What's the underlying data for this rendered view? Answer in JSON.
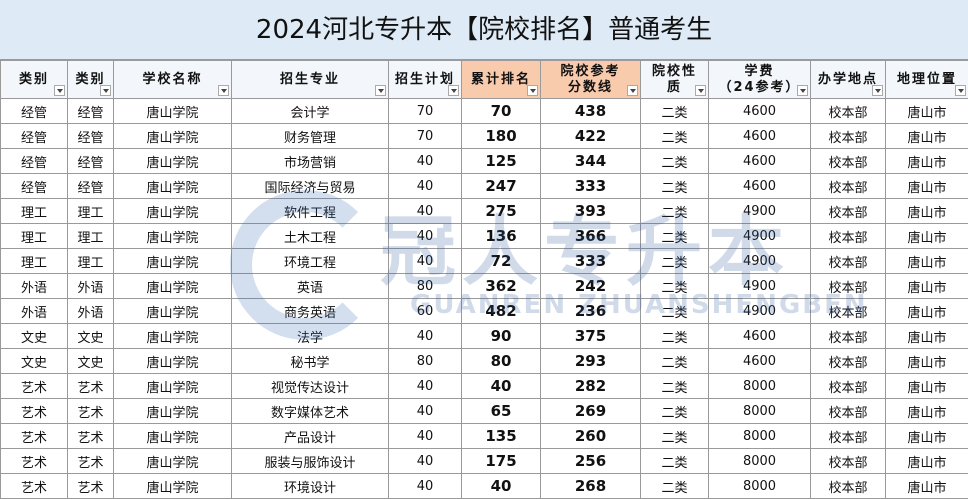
{
  "title": "2024河北专升本【院校排名】普通考生",
  "watermark": {
    "main": "冠人专升本",
    "sub": "GUANREN ZHUANSHENGBEN"
  },
  "table": {
    "header": [
      [
        "类别"
      ],
      [
        "类别"
      ],
      [
        "学校名称"
      ],
      [
        "招生专业"
      ],
      [
        "招生计划"
      ],
      [
        "累计排名"
      ],
      [
        "院校参考",
        "分数线"
      ],
      [
        "院校性",
        "质"
      ],
      [
        "学费",
        "（24参考）"
      ],
      [
        "办学地点"
      ],
      [
        "地理位置"
      ]
    ],
    "rows": [
      [
        "经管",
        "经管",
        "唐山学院",
        "会计学",
        70,
        70,
        438,
        "二类",
        4600,
        "校本部",
        "唐山市"
      ],
      [
        "经管",
        "经管",
        "唐山学院",
        "财务管理",
        70,
        180,
        422,
        "二类",
        4600,
        "校本部",
        "唐山市"
      ],
      [
        "经管",
        "经管",
        "唐山学院",
        "市场营销",
        40,
        125,
        344,
        "二类",
        4600,
        "校本部",
        "唐山市"
      ],
      [
        "经管",
        "经管",
        "唐山学院",
        "国际经济与贸易",
        40,
        247,
        333,
        "二类",
        4600,
        "校本部",
        "唐山市"
      ],
      [
        "理工",
        "理工",
        "唐山学院",
        "软件工程",
        40,
        275,
        393,
        "二类",
        4900,
        "校本部",
        "唐山市"
      ],
      [
        "理工",
        "理工",
        "唐山学院",
        "土木工程",
        40,
        136,
        366,
        "二类",
        4900,
        "校本部",
        "唐山市"
      ],
      [
        "理工",
        "理工",
        "唐山学院",
        "环境工程",
        40,
        72,
        333,
        "二类",
        4900,
        "校本部",
        "唐山市"
      ],
      [
        "外语",
        "外语",
        "唐山学院",
        "英语",
        80,
        362,
        242,
        "二类",
        4900,
        "校本部",
        "唐山市"
      ],
      [
        "外语",
        "外语",
        "唐山学院",
        "商务英语",
        60,
        482,
        236,
        "二类",
        4900,
        "校本部",
        "唐山市"
      ],
      [
        "文史",
        "文史",
        "唐山学院",
        "法学",
        40,
        90,
        375,
        "二类",
        4600,
        "校本部",
        "唐山市"
      ],
      [
        "文史",
        "文史",
        "唐山学院",
        "秘书学",
        80,
        80,
        293,
        "二类",
        4600,
        "校本部",
        "唐山市"
      ],
      [
        "艺术",
        "艺术",
        "唐山学院",
        "视觉传达设计",
        40,
        40,
        282,
        "二类",
        8000,
        "校本部",
        "唐山市"
      ],
      [
        "艺术",
        "艺术",
        "唐山学院",
        "数字媒体艺术",
        40,
        65,
        269,
        "二类",
        8000,
        "校本部",
        "唐山市"
      ],
      [
        "艺术",
        "艺术",
        "唐山学院",
        "产品设计",
        40,
        135,
        260,
        "二类",
        8000,
        "校本部",
        "唐山市"
      ],
      [
        "艺术",
        "艺术",
        "唐山学院",
        "服装与服饰设计",
        40,
        175,
        256,
        "二类",
        8000,
        "校本部",
        "唐山市"
      ],
      [
        "艺术",
        "艺术",
        "唐山学院",
        "环境设计",
        40,
        40,
        268,
        "二类",
        8000,
        "校本部",
        "唐山市"
      ]
    ]
  }
}
